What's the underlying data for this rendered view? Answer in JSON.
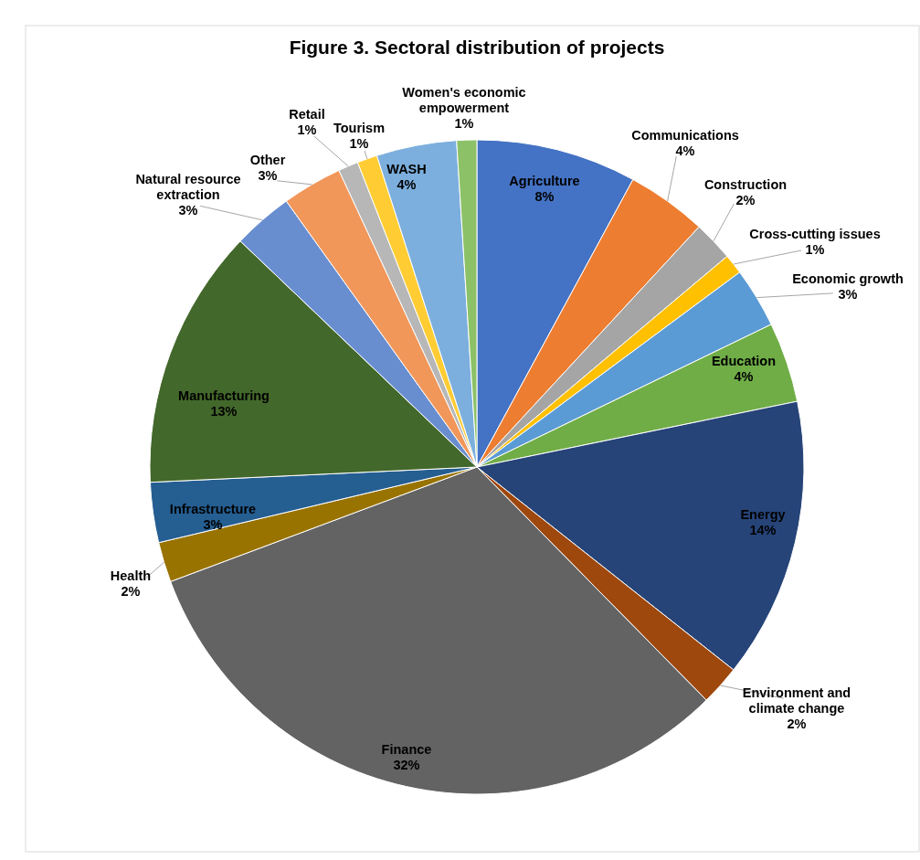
{
  "chart_data": {
    "type": "pie",
    "title": "Figure 3. Sectoral distribution of projects",
    "categories": [
      "Agriculture",
      "Communications",
      "Construction",
      "Cross-cutting issues",
      "Economic growth",
      "Education",
      "Energy",
      "Environment and climate change",
      "Finance",
      "Health",
      "Infrastructure",
      "Manufacturing",
      "Natural resource extraction",
      "Other",
      "Retail",
      "Tourism",
      "WASH",
      "Women's economic empowerment"
    ],
    "values": [
      8,
      4,
      2,
      1,
      3,
      4,
      14,
      2,
      32,
      2,
      3,
      13,
      3,
      3,
      1,
      1,
      4,
      1
    ],
    "value_labels": [
      "8%",
      "4%",
      "2%",
      "1%",
      "3%",
      "4%",
      "14%",
      "2%",
      "32%",
      "2%",
      "3%",
      "13%",
      "3%",
      "3%",
      "1%",
      "1%",
      "4%",
      "1%"
    ],
    "colors": [
      "#4472c4",
      "#ed7d31",
      "#a5a5a5",
      "#ffc000",
      "#5b9bd5",
      "#70ad47",
      "#264478",
      "#9e480e",
      "#636363",
      "#997300",
      "#255e91",
      "#43682b",
      "#698ed0",
      "#f1975a",
      "#b7b7b7",
      "#ffcd33",
      "#7cafdd",
      "#8cc168"
    ],
    "data_labels": false
  }
}
